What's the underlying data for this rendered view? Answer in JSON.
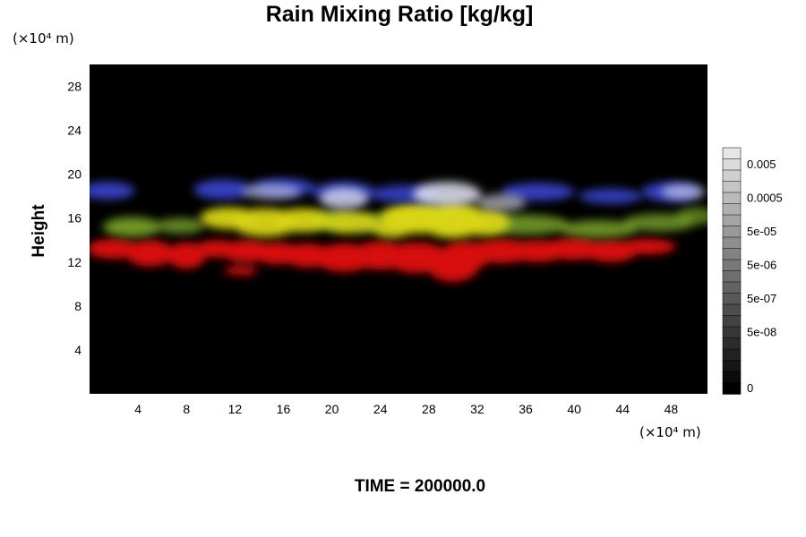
{
  "chart_data": {
    "type": "heatmap",
    "title": "Rain Mixing Ratio [kg/kg]",
    "xlabel": "",
    "ylabel": "Height",
    "x_unit": "(×10⁴ m)",
    "y_unit": "(×10⁴ m)",
    "xlim": [
      0,
      51
    ],
    "ylim": [
      0,
      30
    ],
    "x_ticks": [
      4,
      8,
      12,
      16,
      20,
      24,
      28,
      32,
      36,
      40,
      44,
      48
    ],
    "y_ticks": [
      4,
      8,
      12,
      16,
      20,
      24,
      28
    ],
    "grid": false,
    "background_color": "#000000",
    "layers": [
      {
        "name": "blue",
        "color": "#3a45d0",
        "y_range": [
          17.5,
          19.8
        ]
      },
      {
        "name": "white",
        "color": "#e4e6f4",
        "y_range": [
          16.8,
          19.5
        ]
      },
      {
        "name": "green",
        "color": "#7aa52a",
        "y_range": [
          14.8,
          16.8
        ]
      },
      {
        "name": "yellow",
        "color": "#d8d418",
        "y_range": [
          14.0,
          17.5
        ]
      },
      {
        "name": "red",
        "color": "#d81010",
        "y_range": [
          11.0,
          14.0
        ]
      }
    ],
    "colorbar": {
      "levels": 22,
      "labels": [
        "0.005",
        "0.0005",
        "5e-05",
        "5e-06",
        "5e-07",
        "5e-08",
        "0"
      ],
      "scale": "log"
    }
  },
  "footer": {
    "time_label": "TIME = 200000.0"
  }
}
